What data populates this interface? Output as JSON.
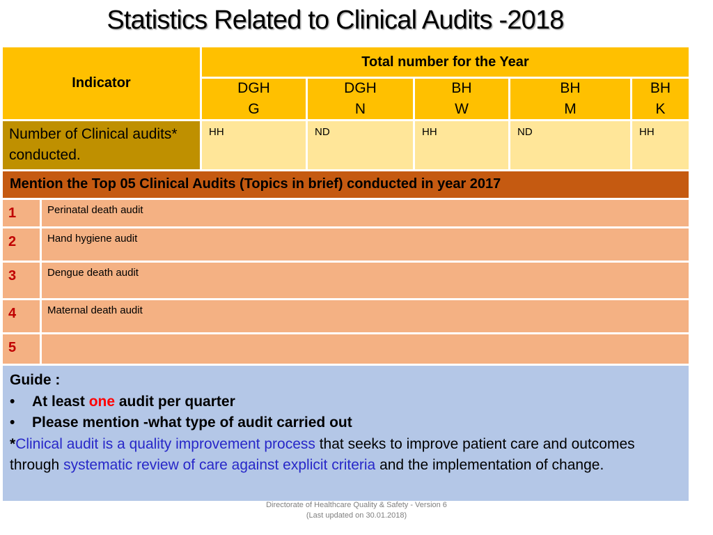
{
  "title": "Statistics Related to Clinical Audits -2018",
  "header": {
    "indicator_label": "Indicator",
    "total_label": "Total number for the Year",
    "columns": [
      {
        "line1": "DGH",
        "line2": "G"
      },
      {
        "line1": "DGH",
        "line2": "N"
      },
      {
        "line1": "BH",
        "line2": "W"
      },
      {
        "line1": "BH",
        "line2": "M"
      },
      {
        "line1": "BH",
        "line2": "K"
      }
    ]
  },
  "indicator_row": {
    "label": "Number of Clinical audits* conducted.",
    "values": [
      "HH",
      "ND",
      "HH",
      "ND",
      "HH"
    ]
  },
  "banner": "Mention the Top 05 Clinical Audits (Topics in brief) conducted in year 2017",
  "top_audits": [
    {
      "num": "1",
      "topic": "Perinatal death audit"
    },
    {
      "num": "2",
      "topic": "Hand hygiene audit"
    },
    {
      "num": "3",
      "topic": "Dengue death audit"
    },
    {
      "num": "4",
      "topic": "Maternal death audit"
    },
    {
      "num": "5",
      "topic": ""
    }
  ],
  "guide": {
    "heading": "Guide :",
    "bullet1_pre": "At least ",
    "bullet1_highlight": "one",
    "bullet1_post": " audit per quarter",
    "bullet2": "Please mention -what type of audit carried out",
    "note_star": "*",
    "note_blue1": "Clinical audit is a quality improvement process",
    "note_mid": " that seeks to improve patient care and outcomes through ",
    "note_blue2": "systematic review of care against explicit criteria",
    "note_end": " and the implementation of change."
  },
  "footer": {
    "line1": "Directorate of Healthcare Quality & Safety - Version 6",
    "line2": "(Last updated on 30.01.2018)"
  },
  "colors": {
    "header": "#ffc000",
    "header_light": "#ffe699",
    "indicator_dark": "#bf9000",
    "banner": "#c55a11",
    "rows": "#f4b183",
    "guide": "#b4c7e7",
    "accent_red": "#ff0000",
    "accent_blue": "#2727c8"
  }
}
